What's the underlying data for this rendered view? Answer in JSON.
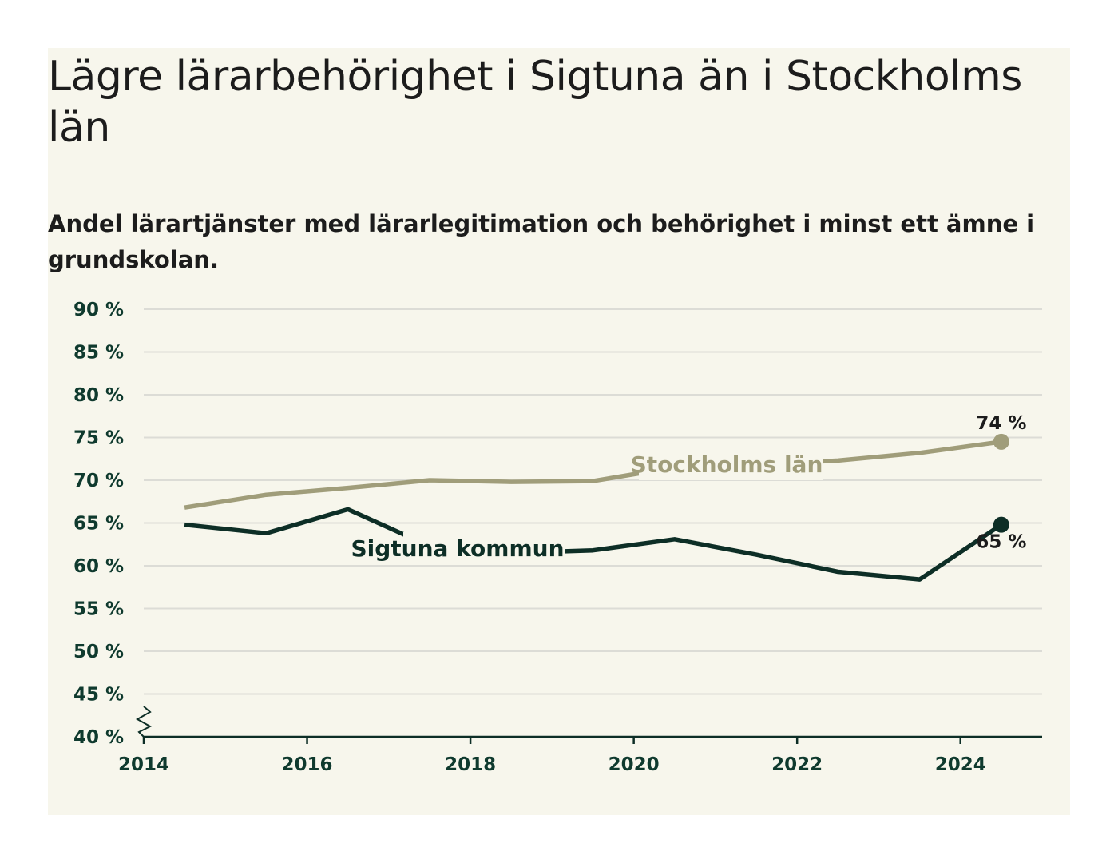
{
  "title": "Lägre lärarbehörighet i Sigtuna än i Stockholms län",
  "subtitle": "Andel lärartjänster med lärarlegitimation och behörighet i minst ett ämne i grundskolan.",
  "chart_data": {
    "type": "line",
    "x": [
      2014.5,
      2015.5,
      2016.5,
      2017.5,
      2018.5,
      2019.5,
      2020.5,
      2021.5,
      2022.5,
      2023.5,
      2024.5
    ],
    "series": [
      {
        "name": "Stockholms län",
        "color": "#a09d7a",
        "values": [
          66.8,
          68.3,
          69.1,
          70.0,
          69.8,
          69.9,
          71.5,
          71.8,
          72.3,
          73.2,
          74.5
        ],
        "end_label": "74 %"
      },
      {
        "name": "Sigtuna kommun",
        "color": "#0d2e26",
        "values": [
          64.8,
          63.8,
          66.6,
          62.3,
          61.5,
          61.8,
          63.1,
          61.3,
          59.3,
          58.4,
          64.8
        ],
        "end_label": "65 %"
      }
    ],
    "xlim": [
      2014,
      2025
    ],
    "ylim": [
      40,
      90
    ],
    "yticks": [
      40,
      45,
      50,
      55,
      60,
      65,
      70,
      75,
      80,
      85,
      90
    ],
    "ytick_labels": [
      "40 %",
      "45 %",
      "50 %",
      "55 %",
      "60 %",
      "65 %",
      "70 %",
      "75 %",
      "80 %",
      "85 %",
      "90 %"
    ],
    "xticks": [
      2014,
      2016,
      2018,
      2020,
      2022,
      2024
    ],
    "xtick_labels": [
      "2014",
      "2016",
      "2018",
      "2020",
      "2022",
      "2024"
    ],
    "grid": true,
    "axis_break": true
  }
}
